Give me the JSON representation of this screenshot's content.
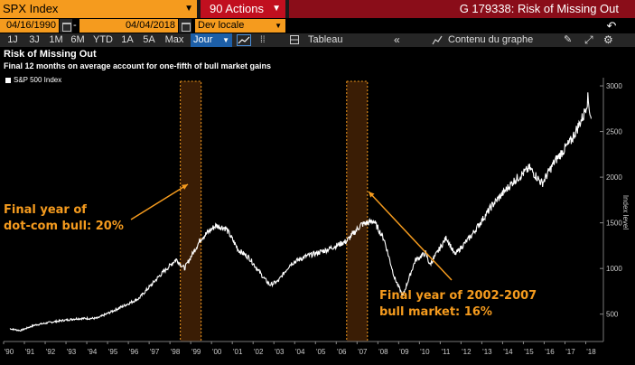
{
  "header": {
    "ticker": "SPX Index",
    "actions_label": "90 Actions",
    "title": "G 179338: Risk of Missing Out",
    "start_date": "04/16/1990",
    "end_date": "04/04/2018",
    "currency": "Dev locale"
  },
  "toolbar": {
    "periods": [
      "1J",
      "3J",
      "1M",
      "6M",
      "YTD",
      "1A",
      "5A",
      "Max"
    ],
    "frequency": "Jour",
    "table_label": "Tableau",
    "chart_content_label": "Contenu du graphe"
  },
  "colors": {
    "accent": "#f59b1e",
    "header_red": "#c10f1f",
    "title_red": "#8a0d19",
    "highlight_band": "#3a1d05",
    "line": "#ffffff"
  },
  "chart_data": {
    "type": "line",
    "title": "Risk of Missing Out",
    "subtitle": "Final 12 months on average account for one-fifth of bull market gains",
    "series": [
      {
        "name": "S&P 500 Index",
        "x": [
          1990.3,
          1990.8,
          1991.5,
          1992.5,
          1993.5,
          1994.5,
          1995.5,
          1996.5,
          1997.5,
          1998.3,
          1998.7,
          1999.5,
          2000.2,
          2000.7,
          2001.3,
          2001.8,
          2002.5,
          2002.8,
          2003.2,
          2003.8,
          2004.5,
          2005.5,
          2006.5,
          2007.2,
          2007.8,
          2008.3,
          2008.8,
          2009.2,
          2009.8,
          2010.3,
          2010.5,
          2011.3,
          2011.7,
          2012.5,
          2013.5,
          2014.5,
          2015.3,
          2015.9,
          2016.5,
          2017.3,
          2017.9,
          2018.1,
          2018.26
        ],
        "y": [
          340,
          320,
          380,
          420,
          450,
          455,
          560,
          670,
          920,
          1100,
          1000,
          1330,
          1470,
          1440,
          1200,
          1120,
          900,
          820,
          860,
          1050,
          1130,
          1200,
          1300,
          1480,
          1520,
          1320,
          900,
          700,
          1090,
          1170,
          1040,
          1340,
          1150,
          1360,
          1690,
          1950,
          2100,
          1930,
          2170,
          2400,
          2680,
          2860,
          2640
        ]
      }
    ],
    "highlight_periods": [
      [
        1998.5,
        1999.5
      ],
      [
        2006.5,
        2007.5
      ]
    ],
    "xlim": [
      1990,
      2018.5
    ],
    "ylim": [
      200,
      3050
    ],
    "x_tick_labels": [
      "'90",
      "'91",
      "'92",
      "'93",
      "'94",
      "'95",
      "'96",
      "'97",
      "'98",
      "'99",
      "'00",
      "'01",
      "'02",
      "'03",
      "'04",
      "'05",
      "'06",
      "'07",
      "'08",
      "'09",
      "'10",
      "'11",
      "'12",
      "'13",
      "'14",
      "'15",
      "'16",
      "'17",
      "'18"
    ],
    "y_ticks": [
      500,
      1000,
      1500,
      2000,
      2500,
      3000
    ],
    "ylabel": "Index level",
    "annotations": [
      {
        "lines": [
          "Final year of",
          "dot-com bull: 20%"
        ]
      },
      {
        "lines": [
          "Final year of 2002-2007",
          "bull market: 16%"
        ]
      }
    ],
    "grid": false,
    "legend_position": "top-left"
  }
}
